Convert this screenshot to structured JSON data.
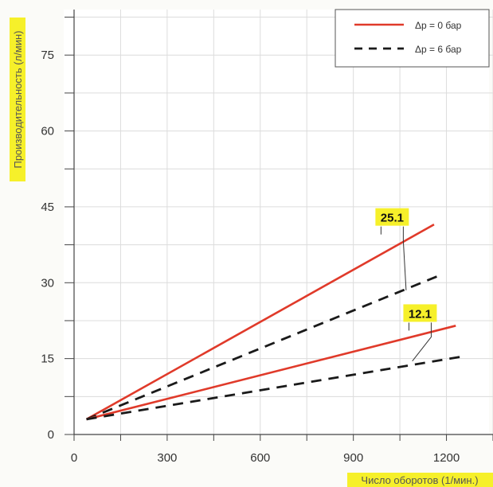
{
  "chart_data": {
    "type": "line",
    "xlabel": "Число оборотов (1/мин.)",
    "ylabel": "Производительность (л/мин)",
    "xlim": [
      0,
      1350
    ],
    "ylim": [
      0,
      84
    ],
    "x_ticks": [
      0,
      300,
      600,
      900,
      1200
    ],
    "y_ticks": [
      0,
      15,
      30,
      45,
      60,
      75
    ],
    "grid": true,
    "legend_position": "top-right",
    "colors": {
      "solid": "#e03a2a",
      "dashed": "#1a1a1a",
      "badge": "#f6f02a"
    },
    "series": [
      {
        "name": "Δp = 0 бар",
        "group": "25.1",
        "style": "solid",
        "x": [
          40,
          1160
        ],
        "y": [
          3,
          41.5
        ]
      },
      {
        "name": "Δp = 6 бар",
        "group": "25.1",
        "style": "dashed",
        "x": [
          40,
          1180
        ],
        "y": [
          3,
          31.5
        ]
      },
      {
        "name": "Δp = 0 бар",
        "group": "12.1",
        "style": "solid",
        "x": [
          40,
          1230
        ],
        "y": [
          3,
          21.5
        ]
      },
      {
        "name": "Δp = 6 бар",
        "group": "12.1",
        "style": "dashed",
        "x": [
          40,
          1260
        ],
        "y": [
          3,
          15.5
        ]
      }
    ],
    "legend": [
      {
        "label": "Δp = 0 бар",
        "style": "solid"
      },
      {
        "label": "Δp = 6 бар",
        "style": "dashed"
      }
    ],
    "annotations": [
      {
        "text": "25.1",
        "target_x": 1070,
        "target_y": 28.5,
        "label_x": 1025,
        "label_y": 43
      },
      {
        "text": "12.1",
        "target_x": 1090,
        "target_y": 14.5,
        "label_x": 1115,
        "label_y": 24
      }
    ]
  }
}
